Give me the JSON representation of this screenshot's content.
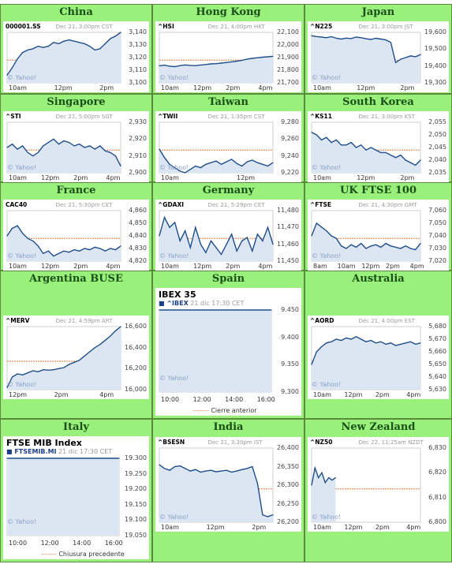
{
  "colors": {
    "cell_bg": "#99f07a",
    "header_text": "#1a4f1a",
    "line": "#1f4e8c",
    "fill": "#dbe6f2",
    "ref": "#e07a3a"
  },
  "panels": [
    {
      "id": "china",
      "region": "China",
      "kind": "small",
      "symbol": "000001.SS",
      "sub": "Dec 21, 3:00pm CST",
      "yticks": [
        "3,140",
        "3,130",
        "3,120",
        "3,110",
        "3,100"
      ],
      "xticks": [
        "10am",
        "12pm",
        "2pm"
      ],
      "credit": "© Yahoo!",
      "series": [
        3106,
        3112,
        3119,
        3124,
        3126,
        3127,
        3129,
        3128,
        3129,
        3132,
        3131,
        3133,
        3134,
        3133,
        3132,
        3131,
        3129,
        3126,
        3127,
        3131,
        3135,
        3137,
        3140
      ]
    },
    {
      "id": "hongkong",
      "region": "Hong Kong",
      "kind": "small",
      "symbol": "^HSI",
      "sub": "Dec 21, 4:00pm HKT",
      "yticks": [
        "22,100",
        "22,000",
        "21,900",
        "21,800",
        "21,700"
      ],
      "xticks": [
        "10am",
        "12pm",
        "2pm",
        "4pm"
      ],
      "credit": "© Yahoo!",
      "series": [
        21835,
        21840,
        21832,
        21828,
        21836,
        21842,
        21838,
        21836,
        21841,
        21845,
        21850,
        21852,
        21856,
        21861,
        21866,
        21872,
        21878,
        21888,
        21894,
        21899,
        21903,
        21906,
        21910
      ]
    },
    {
      "id": "japan",
      "region": "Japan",
      "kind": "small",
      "symbol": "^N225",
      "sub": "Dec 21, 3:00pm JST",
      "yticks": [
        "19,600",
        "19,500",
        "19,400",
        "19,300"
      ],
      "xticks": [
        "10am",
        "12pm",
        "2pm"
      ],
      "credit": "© Yahoo!",
      "series": [
        19580,
        19575,
        19572,
        19568,
        19574,
        19565,
        19560,
        19566,
        19563,
        19572,
        19568,
        19562,
        19558,
        19565,
        19560,
        19555,
        19540,
        19420,
        19440,
        19450,
        19460,
        19455,
        19468
      ]
    },
    {
      "id": "singapore",
      "region": "Singapore",
      "kind": "small",
      "symbol": "^STI",
      "sub": "Dec 21, 5:00pm SGT",
      "yticks": [
        "2,930",
        "2,920",
        "2,910",
        "2,900"
      ],
      "xticks": [
        "10am",
        "12pm",
        "2pm",
        "4pm"
      ],
      "credit": "© Yahoo!",
      "series": [
        2915,
        2917,
        2914,
        2916,
        2912,
        2910,
        2912,
        2916,
        2918,
        2920,
        2917,
        2919,
        2918,
        2916,
        2917,
        2915,
        2916,
        2914,
        2916,
        2913,
        2912,
        2910,
        2904
      ]
    },
    {
      "id": "taiwan",
      "region": "Taiwan",
      "kind": "small",
      "symbol": "^TWII",
      "sub": "Dec 21, 1:35pm CST",
      "yticks": [
        "9,280",
        "9,260",
        "9,240",
        "9,220"
      ],
      "xticks": [
        "10am",
        "12pm"
      ],
      "credit": "© Yahoo!",
      "series": [
        9248,
        9238,
        9230,
        9226,
        9222,
        9220,
        9224,
        9228,
        9226,
        9230,
        9232,
        9234,
        9230,
        9233,
        9236,
        9231,
        9228,
        9233,
        9235,
        9232,
        9230,
        9228,
        9232
      ]
    },
    {
      "id": "southkorea",
      "region": "South Korea",
      "kind": "small",
      "symbol": "^KS11",
      "sub": "Dec 21, 3:00pm KST",
      "yticks": [
        "2,055",
        "2,050",
        "2,045",
        "2,040",
        "2,035"
      ],
      "xticks": [
        "10am",
        "12pm",
        "2pm"
      ],
      "credit": "© Yahoo!",
      "series": [
        2051,
        2050,
        2048,
        2049,
        2047,
        2048,
        2046,
        2046,
        2047,
        2045,
        2046,
        2044,
        2045,
        2044,
        2043,
        2043,
        2042,
        2041,
        2042,
        2040,
        2039,
        2038,
        2040
      ]
    },
    {
      "id": "france",
      "region": "France",
      "kind": "small",
      "symbol": "CAC40",
      "sub": "Dec 21, 5:30pm CET",
      "yticks": [
        "4,860",
        "4,850",
        "4,840",
        "4,830",
        "4,820"
      ],
      "xticks": [
        "10am",
        "12pm",
        "2pm",
        "4pm"
      ],
      "credit": "© Yahoo!",
      "series": [
        4840,
        4846,
        4848,
        4842,
        4838,
        4836,
        4832,
        4826,
        4828,
        4824,
        4826,
        4828,
        4827,
        4829,
        4828,
        4830,
        4829,
        4831,
        4830,
        4828,
        4830,
        4829,
        4832
      ]
    },
    {
      "id": "germany",
      "region": "Germany",
      "kind": "small",
      "symbol": "^GDAXI",
      "sub": "Dec 21, 5:29pm CET",
      "yticks": [
        "11,480",
        "11,470",
        "11,460",
        "11,450"
      ],
      "xticks": [
        "10am",
        "12pm",
        "2pm",
        "4pm"
      ],
      "credit": "© Yahoo!",
      "series": [
        11465,
        11476,
        11470,
        11473,
        11462,
        11468,
        11458,
        11470,
        11460,
        11455,
        11462,
        11458,
        11454,
        11460,
        11466,
        11456,
        11462,
        11464,
        11456,
        11466,
        11462,
        11470,
        11460
      ]
    },
    {
      "id": "uk",
      "region": "UK FTSE 100",
      "kind": "small",
      "symbol": "^FTSE",
      "sub": "Dec 21, 4:30pm GMT",
      "yticks": [
        "7,060",
        "7,050",
        "7,040",
        "7,030",
        "7,020"
      ],
      "xticks": [
        "8am",
        "10am",
        "12pm",
        "2pm",
        "4pm"
      ],
      "credit": "© Yahoo!",
      "series": [
        7040,
        7050,
        7047,
        7044,
        7040,
        7038,
        7032,
        7030,
        7033,
        7031,
        7034,
        7030,
        7032,
        7033,
        7031,
        7034,
        7032,
        7031,
        7030,
        7032,
        7030,
        7029,
        7034
      ]
    },
    {
      "id": "argentina",
      "region": "Argentina BUSE",
      "kind": "small",
      "symbol": "^MERV",
      "sub": "Dec 21, 4:59pm ART",
      "yticks": [
        "16,600",
        "16,400",
        "16,200",
        "16,000"
      ],
      "xticks": [
        "12pm",
        "2pm",
        "4pm"
      ],
      "credit": "© Yahoo!",
      "series": [
        16020,
        16120,
        16150,
        16140,
        16160,
        16180,
        16170,
        16190,
        16185,
        16190,
        16200,
        16210,
        16240,
        16260,
        16280,
        16320,
        16360,
        16400,
        16430,
        16470,
        16510,
        16560,
        16600
      ]
    },
    {
      "id": "spain",
      "region": "Spain",
      "kind": "big",
      "title": "IBEX 35",
      "symbol": "^IBEX",
      "sub": "21 dic 17:30 CET",
      "yticks": [
        "9.450",
        "9.400",
        "9.350",
        "9.300"
      ],
      "xticks": [
        "10:00",
        "12:00",
        "14:00",
        "16:00"
      ],
      "credit": "© Yahoo!",
      "legend": "Cierre anterior",
      "series": [
        9405,
        9390,
        9330,
        9320,
        9315,
        9312,
        9318,
        9310,
        9315,
        9308,
        9312,
        9310,
        9314,
        9312,
        9316,
        9313,
        9317,
        9318,
        9325,
        9334,
        9338,
        9345,
        9352
      ]
    },
    {
      "id": "australia",
      "region": "Australia",
      "kind": "small",
      "symbol": "^AORD",
      "sub": "Dec 21, 4:00pm EST",
      "yticks": [
        "5,680",
        "5,670",
        "5,660",
        "5,650",
        "5,640",
        "5,630"
      ],
      "xticks": [
        "10am",
        "12pm",
        "2pm",
        "4pm"
      ],
      "credit": "© Yahoo!",
      "series": [
        5650,
        5660,
        5664,
        5667,
        5668,
        5670,
        5669,
        5671,
        5670,
        5672,
        5670,
        5668,
        5669,
        5667,
        5668,
        5666,
        5667,
        5665,
        5666,
        5667,
        5668,
        5666,
        5667
      ]
    },
    {
      "id": "italy",
      "region": "Italy",
      "kind": "big",
      "title": "FTSE MIB Index",
      "symbol": "FTSEMIB.MI",
      "sub": "21 dic 17:30 CET",
      "yticks": [
        "19.300",
        "19.250",
        "19.200",
        "19.150",
        "19.100",
        "19.050"
      ],
      "xticks": [
        "10:00",
        "12:00",
        "14:00",
        "16:00"
      ],
      "credit": "© Yahoo!",
      "legend": "Chiusura precedente",
      "series": [
        19240,
        19215,
        19190,
        19155,
        19130,
        19120,
        19110,
        19105,
        19095,
        19100,
        19118,
        19130,
        19140,
        19150,
        19168,
        19180,
        19195,
        19210,
        19220,
        19215,
        19212,
        19220,
        19218
      ]
    },
    {
      "id": "india",
      "region": "India",
      "kind": "small",
      "symbol": "^BSESN",
      "sub": "Dec 21, 3:30pm IST",
      "yticks": [
        "26,400",
        "26,350",
        "26,300",
        "26,250",
        "26,200"
      ],
      "xticks": [
        "10am",
        "12pm",
        "2pm"
      ],
      "credit": "© Yahoo!",
      "series": [
        26355,
        26345,
        26340,
        26350,
        26352,
        26345,
        26338,
        26342,
        26335,
        26338,
        26340,
        26336,
        26338,
        26340,
        26335,
        26338,
        26342,
        26345,
        26350,
        26305,
        26220,
        26215,
        26220
      ]
    },
    {
      "id": "newzealand",
      "region": "New Zealand",
      "kind": "small",
      "symbol": "^NZ50",
      "sub": "Dec 22, 11:25am NZDT",
      "yticks": [
        "6,830",
        "6,820",
        "6,810",
        "6,800"
      ],
      "xticks": [
        "10am",
        "12pm",
        "2pm",
        "4pm"
      ],
      "credit": "© Yahoo!",
      "series": [
        6815,
        6822,
        6818,
        6820,
        6816,
        6818,
        6817,
        6818
      ]
    }
  ]
}
